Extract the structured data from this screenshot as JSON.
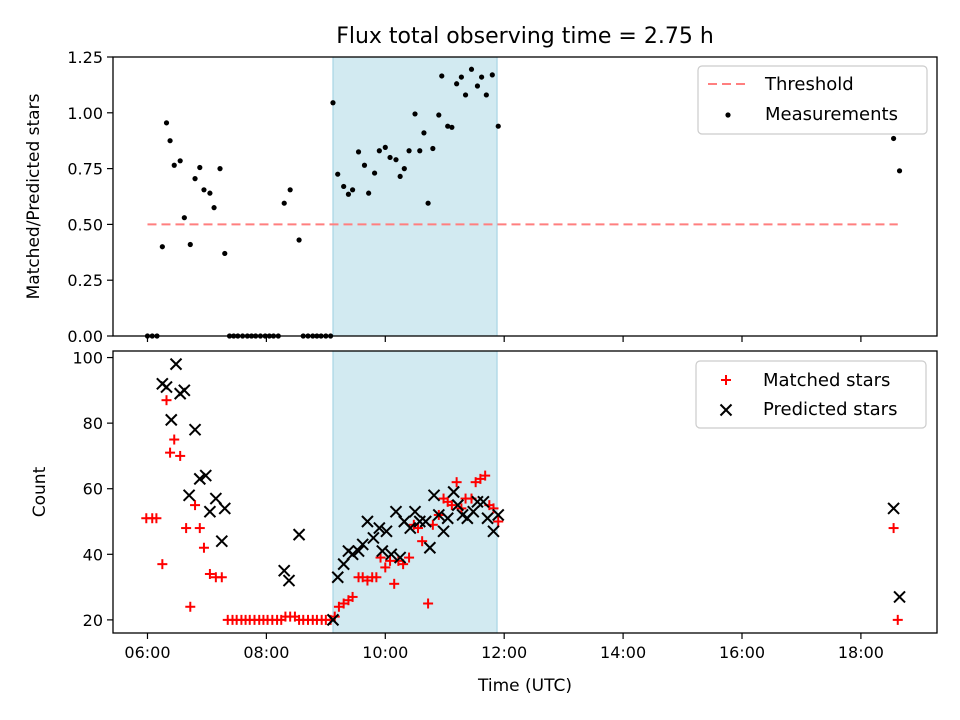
{
  "chart_data": [
    {
      "type": "scatter",
      "title": "Flux total observing time = 2.75 h",
      "ylabel": "Matched/Predicted stars",
      "xlabel": "",
      "xlim": [
        5.42,
        19.28
      ],
      "ylim": [
        0,
        1.25
      ],
      "yticks": [
        "0.00",
        "0.25",
        "0.50",
        "0.75",
        "1.00",
        "1.25"
      ],
      "shaded_span": [
        9.12,
        11.88
      ],
      "legend_position": "top-right",
      "threshold": {
        "name": "Threshold",
        "y": 0.5,
        "x_range": [
          6.0,
          18.62
        ],
        "color": "#ff7f7f"
      },
      "series": [
        {
          "name": "Measurements",
          "color": "#000000",
          "points": [
            [
              6.0,
              0
            ],
            [
              6.08,
              0
            ],
            [
              6.16,
              0
            ],
            [
              6.25,
              0.4
            ],
            [
              6.32,
              0.955
            ],
            [
              6.38,
              0.875
            ],
            [
              6.45,
              0.765
            ],
            [
              6.55,
              0.785
            ],
            [
              6.62,
              0.53
            ],
            [
              6.72,
              0.41
            ],
            [
              6.8,
              0.705
            ],
            [
              6.88,
              0.755
            ],
            [
              6.95,
              0.655
            ],
            [
              7.05,
              0.64
            ],
            [
              7.12,
              0.575
            ],
            [
              7.22,
              0.75
            ],
            [
              7.3,
              0.37
            ],
            [
              7.38,
              0
            ],
            [
              7.45,
              0
            ],
            [
              7.52,
              0
            ],
            [
              7.6,
              0
            ],
            [
              7.68,
              0
            ],
            [
              7.75,
              0
            ],
            [
              7.82,
              0
            ],
            [
              7.9,
              0
            ],
            [
              7.98,
              0
            ],
            [
              8.05,
              0
            ],
            [
              8.12,
              0
            ],
            [
              8.2,
              0
            ],
            [
              8.3,
              0.595
            ],
            [
              8.4,
              0.655
            ],
            [
              8.55,
              0.43
            ],
            [
              8.62,
              0
            ],
            [
              8.7,
              0
            ],
            [
              8.78,
              0
            ],
            [
              8.85,
              0
            ],
            [
              8.92,
              0
            ],
            [
              9.0,
              0
            ],
            [
              9.08,
              0
            ],
            [
              9.12,
              1.045
            ],
            [
              9.2,
              0.725
            ],
            [
              9.3,
              0.67
            ],
            [
              9.38,
              0.635
            ],
            [
              9.45,
              0.655
            ],
            [
              9.55,
              0.825
            ],
            [
              9.65,
              0.765
            ],
            [
              9.72,
              0.64
            ],
            [
              9.82,
              0.73
            ],
            [
              9.9,
              0.83
            ],
            [
              10.0,
              0.845
            ],
            [
              10.08,
              0.8
            ],
            [
              10.18,
              0.79
            ],
            [
              10.25,
              0.715
            ],
            [
              10.32,
              0.75
            ],
            [
              10.4,
              0.83
            ],
            [
              10.5,
              0.995
            ],
            [
              10.58,
              0.83
            ],
            [
              10.65,
              0.91
            ],
            [
              10.72,
              0.595
            ],
            [
              10.8,
              0.84
            ],
            [
              10.9,
              0.99
            ],
            [
              10.95,
              1.165
            ],
            [
              11.05,
              0.94
            ],
            [
              11.12,
              0.935
            ],
            [
              11.2,
              1.13
            ],
            [
              11.28,
              1.16
            ],
            [
              11.35,
              1.08
            ],
            [
              11.45,
              1.195
            ],
            [
              11.55,
              1.12
            ],
            [
              11.62,
              1.16
            ],
            [
              11.7,
              1.08
            ],
            [
              11.8,
              1.17
            ],
            [
              11.9,
              0.94
            ],
            [
              18.55,
              0.885
            ],
            [
              18.65,
              0.74
            ]
          ]
        }
      ]
    },
    {
      "type": "scatter",
      "title": "",
      "ylabel": "Count",
      "xlabel": "Time (UTC)",
      "xlim": [
        5.42,
        19.28
      ],
      "ylim": [
        16,
        102
      ],
      "yticks": [
        "20",
        "40",
        "60",
        "80",
        "100"
      ],
      "xticks": [
        {
          "x": 6,
          "label": "06:00"
        },
        {
          "x": 8,
          "label": "08:00"
        },
        {
          "x": 10,
          "label": "10:00"
        },
        {
          "x": 12,
          "label": "12:00"
        },
        {
          "x": 14,
          "label": "14:00"
        },
        {
          "x": 16,
          "label": "16:00"
        },
        {
          "x": 18,
          "label": "18:00"
        }
      ],
      "shaded_span": [
        9.12,
        11.88
      ],
      "legend_position": "top-right",
      "series": [
        {
          "name": "Matched stars",
          "marker": "plus",
          "color": "#ff0000",
          "points": [
            [
              5.98,
              51
            ],
            [
              6.08,
              51
            ],
            [
              6.15,
              51
            ],
            [
              6.25,
              37
            ],
            [
              6.32,
              87
            ],
            [
              6.38,
              71
            ],
            [
              6.45,
              75
            ],
            [
              6.55,
              70
            ],
            [
              6.65,
              48
            ],
            [
              6.72,
              24
            ],
            [
              6.8,
              55
            ],
            [
              6.88,
              48
            ],
            [
              6.95,
              42
            ],
            [
              7.05,
              34
            ],
            [
              7.15,
              33
            ],
            [
              7.25,
              33
            ],
            [
              7.35,
              20
            ],
            [
              7.43,
              20
            ],
            [
              7.5,
              20
            ],
            [
              7.58,
              20
            ],
            [
              7.65,
              20
            ],
            [
              7.72,
              20
            ],
            [
              7.8,
              20
            ],
            [
              7.88,
              20
            ],
            [
              7.95,
              20
            ],
            [
              8.02,
              20
            ],
            [
              8.1,
              20
            ],
            [
              8.18,
              20
            ],
            [
              8.25,
              20
            ],
            [
              8.32,
              21
            ],
            [
              8.4,
              21
            ],
            [
              8.48,
              21
            ],
            [
              8.55,
              20
            ],
            [
              8.62,
              20
            ],
            [
              8.7,
              20
            ],
            [
              8.78,
              20
            ],
            [
              8.85,
              20
            ],
            [
              8.93,
              20
            ],
            [
              9.0,
              20
            ],
            [
              9.08,
              20
            ],
            [
              9.15,
              21
            ],
            [
              9.22,
              24
            ],
            [
              9.3,
              25
            ],
            [
              9.38,
              26
            ],
            [
              9.45,
              27
            ],
            [
              9.55,
              33
            ],
            [
              9.62,
              33
            ],
            [
              9.7,
              32
            ],
            [
              9.78,
              33
            ],
            [
              9.85,
              33
            ],
            [
              9.92,
              39
            ],
            [
              10.0,
              36
            ],
            [
              10.08,
              38
            ],
            [
              10.15,
              31
            ],
            [
              10.22,
              38
            ],
            [
              10.3,
              37
            ],
            [
              10.4,
              39
            ],
            [
              10.48,
              49
            ],
            [
              10.55,
              48
            ],
            [
              10.62,
              44
            ],
            [
              10.72,
              25
            ],
            [
              10.8,
              49
            ],
            [
              10.9,
              52
            ],
            [
              10.98,
              57
            ],
            [
              11.05,
              56
            ],
            [
              11.12,
              55
            ],
            [
              11.2,
              62
            ],
            [
              11.28,
              54
            ],
            [
              11.35,
              57
            ],
            [
              11.45,
              57
            ],
            [
              11.52,
              62
            ],
            [
              11.6,
              63
            ],
            [
              11.68,
              64
            ],
            [
              11.75,
              55
            ],
            [
              11.82,
              54
            ],
            [
              11.9,
              50
            ],
            [
              18.55,
              48
            ],
            [
              18.62,
              20
            ]
          ]
        },
        {
          "name": "Predicted stars",
          "marker": "x",
          "color": "#000000",
          "points": [
            [
              6.25,
              92
            ],
            [
              6.32,
              91
            ],
            [
              6.4,
              81
            ],
            [
              6.48,
              98
            ],
            [
              6.55,
              89
            ],
            [
              6.62,
              90
            ],
            [
              6.7,
              58
            ],
            [
              6.8,
              78
            ],
            [
              6.88,
              63
            ],
            [
              6.98,
              64
            ],
            [
              7.05,
              53
            ],
            [
              7.15,
              57
            ],
            [
              7.25,
              44
            ],
            [
              7.3,
              54
            ],
            [
              8.3,
              35
            ],
            [
              8.38,
              32
            ],
            [
              8.55,
              46
            ],
            [
              9.12,
              20
            ],
            [
              9.2,
              33
            ],
            [
              9.3,
              37
            ],
            [
              9.38,
              41
            ],
            [
              9.45,
              40
            ],
            [
              9.55,
              41
            ],
            [
              9.62,
              43
            ],
            [
              9.7,
              50
            ],
            [
              9.8,
              45
            ],
            [
              9.9,
              48
            ],
            [
              9.95,
              41
            ],
            [
              10.02,
              47
            ],
            [
              10.1,
              40
            ],
            [
              10.18,
              53
            ],
            [
              10.25,
              39
            ],
            [
              10.32,
              50
            ],
            [
              10.42,
              48
            ],
            [
              10.5,
              53
            ],
            [
              10.58,
              50
            ],
            [
              10.68,
              50
            ],
            [
              10.75,
              42
            ],
            [
              10.82,
              58
            ],
            [
              10.9,
              52
            ],
            [
              10.98,
              47
            ],
            [
              11.05,
              51
            ],
            [
              11.15,
              59
            ],
            [
              11.22,
              55
            ],
            [
              11.3,
              52
            ],
            [
              11.38,
              51
            ],
            [
              11.48,
              53
            ],
            [
              11.55,
              56
            ],
            [
              11.65,
              56
            ],
            [
              11.72,
              51
            ],
            [
              11.82,
              47
            ],
            [
              11.9,
              52
            ],
            [
              18.55,
              54
            ],
            [
              18.65,
              27
            ]
          ]
        }
      ]
    }
  ]
}
